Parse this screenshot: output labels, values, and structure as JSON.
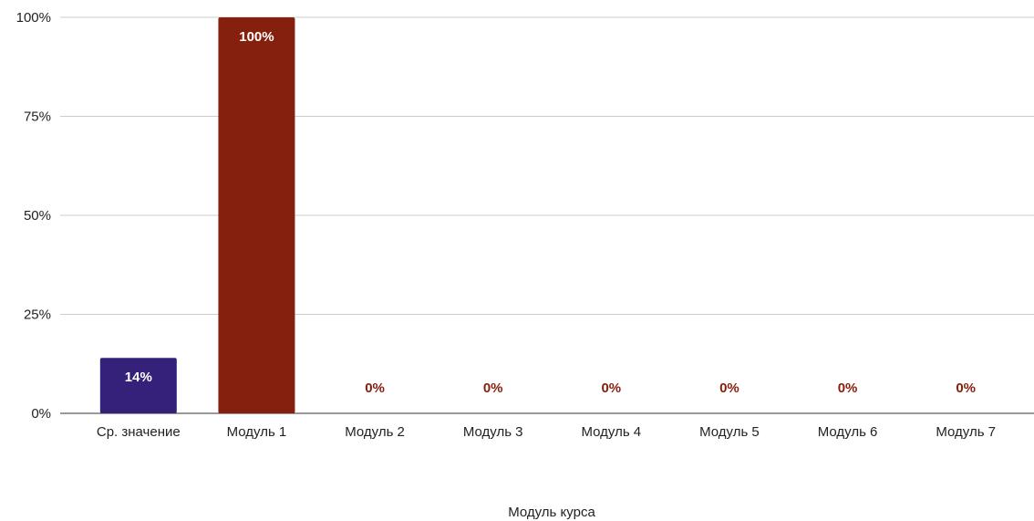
{
  "chart_data": {
    "type": "bar",
    "title": "",
    "xlabel": "Модуль курса",
    "ylabel": "",
    "ylim": [
      0,
      100
    ],
    "yticks": [
      0,
      25,
      50,
      75,
      100
    ],
    "ytick_labels": [
      "0%",
      "25%",
      "50%",
      "75%",
      "100%"
    ],
    "grid": true,
    "legend": "none",
    "categories": [
      "Ср. значение",
      "Модуль 1",
      "Модуль 2",
      "Модуль 3",
      "Модуль 4",
      "Модуль 5",
      "Модуль 6",
      "Модуль 7"
    ],
    "values": [
      14,
      100,
      0,
      0,
      0,
      0,
      0,
      0
    ],
    "data_labels": [
      "14%",
      "100%",
      "0%",
      "0%",
      "0%",
      "0%",
      "0%",
      "0%"
    ],
    "colors": {
      "average_bar": "#35217a",
      "module_bar": "#86200e",
      "label_inside": "#ffffff",
      "label_outside": "#86200e"
    }
  }
}
